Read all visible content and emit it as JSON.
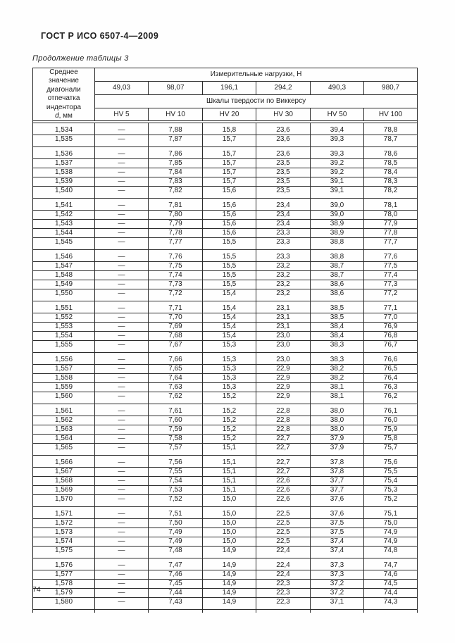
{
  "page": {
    "doc_title": "ГОСТ Р ИСО 6507-4—2009",
    "table_caption": "Продолжение таблицы 3",
    "page_number": "74"
  },
  "table": {
    "corner_text": "Среднее значение диагонали отпечатка индентора",
    "corner_symbol": "d",
    "corner_unit": ", мм",
    "loads_header": "Измерительные нагрузки, Н",
    "loads": [
      "49,03",
      "98,07",
      "196,1",
      "294,2",
      "490,3",
      "980,7"
    ],
    "scales_header": "Шкалы твердости по Виккерсу",
    "scales": [
      "HV 5",
      "HV 10",
      "HV 20",
      "HV 30",
      "HV 50",
      "HV 100"
    ],
    "groups": [
      {
        "rows": [
          [
            "1,534",
            "—",
            "7,88",
            "15,8",
            "23,6",
            "39,4",
            "78,8"
          ],
          [
            "1,535",
            "—",
            "7,87",
            "15,7",
            "23,6",
            "39,3",
            "78,7"
          ]
        ]
      },
      {
        "rows": [
          [
            "1,536",
            "—",
            "7,86",
            "15,7",
            "23,6",
            "39,3",
            "78,6"
          ],
          [
            "1,537",
            "—",
            "7,85",
            "15,7",
            "23,5",
            "39,2",
            "78,5"
          ],
          [
            "1,538",
            "—",
            "7,84",
            "15,7",
            "23,5",
            "39,2",
            "78,4"
          ],
          [
            "1,539",
            "—",
            "7,83",
            "15,7",
            "23,5",
            "39,1",
            "78,3"
          ],
          [
            "1,540",
            "—",
            "7,82",
            "15,6",
            "23,5",
            "39,1",
            "78,2"
          ]
        ]
      },
      {
        "rows": [
          [
            "1,541",
            "—",
            "7,81",
            "15,6",
            "23,4",
            "39,0",
            "78,1"
          ],
          [
            "1,542",
            "—",
            "7,80",
            "15,6",
            "23,4",
            "39,0",
            "78,0"
          ],
          [
            "1,543",
            "—",
            "7,79",
            "15,6",
            "23,4",
            "38,9",
            "77,9"
          ],
          [
            "1,544",
            "—",
            "7,78",
            "15,6",
            "23,3",
            "38,9",
            "77,8"
          ],
          [
            "1,545",
            "—",
            "7,77",
            "15,5",
            "23,3",
            "38,8",
            "77,7"
          ]
        ]
      },
      {
        "rows": [
          [
            "1,546",
            "—",
            "7,76",
            "15,5",
            "23,3",
            "38,8",
            "77,6"
          ],
          [
            "1,547",
            "—",
            "7,75",
            "15,5",
            "23,2",
            "38,7",
            "77,5"
          ],
          [
            "1,548",
            "—",
            "7,74",
            "15,5",
            "23,2",
            "38,7",
            "77,4"
          ],
          [
            "1,549",
            "—",
            "7,73",
            "15,5",
            "23,2",
            "38,6",
            "77,3"
          ],
          [
            "1,550",
            "—",
            "7,72",
            "15,4",
            "23,2",
            "38,6",
            "77,2"
          ]
        ]
      },
      {
        "rows": [
          [
            "1,551",
            "—",
            "7,71",
            "15,4",
            "23,1",
            "38,5",
            "77,1"
          ],
          [
            "1,552",
            "—",
            "7,70",
            "15,4",
            "23,1",
            "38,5",
            "77,0"
          ],
          [
            "1,553",
            "—",
            "7,69",
            "15,4",
            "23,1",
            "38,4",
            "76,9"
          ],
          [
            "1,554",
            "—",
            "7,68",
            "15,4",
            "23,0",
            "38,4",
            "76,8"
          ],
          [
            "1,555",
            "—",
            "7,67",
            "15,3",
            "23,0",
            "38,3",
            "76,7"
          ]
        ]
      },
      {
        "rows": [
          [
            "1,556",
            "—",
            "7,66",
            "15,3",
            "23,0",
            "38,3",
            "76,6"
          ],
          [
            "1,557",
            "—",
            "7,65",
            "15,3",
            "22,9",
            "38,2",
            "76,5"
          ],
          [
            "1,558",
            "—",
            "7,64",
            "15,3",
            "22,9",
            "38,2",
            "76,4"
          ],
          [
            "1,559",
            "—",
            "7,63",
            "15,3",
            "22,9",
            "38,1",
            "76,3"
          ],
          [
            "1,560",
            "—",
            "7,62",
            "15,2",
            "22,9",
            "38,1",
            "76,2"
          ]
        ]
      },
      {
        "rows": [
          [
            "1,561",
            "—",
            "7,61",
            "15,2",
            "22,8",
            "38,0",
            "76,1"
          ],
          [
            "1,562",
            "—",
            "7,60",
            "15,2",
            "22,8",
            "38,0",
            "76,0"
          ],
          [
            "1,563",
            "—",
            "7,59",
            "15,2",
            "22,8",
            "38,0",
            "75,9"
          ],
          [
            "1,564",
            "—",
            "7,58",
            "15,2",
            "22,7",
            "37,9",
            "75,8"
          ],
          [
            "1,565",
            "—",
            "7,57",
            "15,1",
            "22,7",
            "37,9",
            "75,7"
          ]
        ]
      },
      {
        "rows": [
          [
            "1,566",
            "—",
            "7,56",
            "15,1",
            "22,7",
            "37,8",
            "75,6"
          ],
          [
            "1,567",
            "—",
            "7,55",
            "15,1",
            "22,7",
            "37,8",
            "75,5"
          ],
          [
            "1,568",
            "—",
            "7,54",
            "15,1",
            "22,6",
            "37,7",
            "75,4"
          ],
          [
            "1,569",
            "—",
            "7,53",
            "15,1",
            "22,6",
            "37,7",
            "75,3"
          ],
          [
            "1,570",
            "—",
            "7,52",
            "15,0",
            "22,6",
            "37,6",
            "75,2"
          ]
        ]
      },
      {
        "rows": [
          [
            "1,571",
            "—",
            "7,51",
            "15,0",
            "22,5",
            "37,6",
            "75,1"
          ],
          [
            "1,572",
            "—",
            "7,50",
            "15,0",
            "22,5",
            "37,5",
            "75,0"
          ],
          [
            "1,573",
            "—",
            "7,49",
            "15,0",
            "22,5",
            "37,5",
            "74,9"
          ],
          [
            "1,574",
            "—",
            "7,49",
            "15,0",
            "22,5",
            "37,4",
            "74,9"
          ],
          [
            "1,575",
            "—",
            "7,48",
            "14,9",
            "22,4",
            "37,4",
            "74,8"
          ]
        ]
      },
      {
        "rows": [
          [
            "1,576",
            "—",
            "7,47",
            "14,9",
            "22,4",
            "37,3",
            "74,7"
          ],
          [
            "1,577",
            "—",
            "7,46",
            "14,9",
            "22,4",
            "37,3",
            "74,6"
          ],
          [
            "1,578",
            "—",
            "7,45",
            "14,9",
            "22,3",
            "37,2",
            "74,5"
          ],
          [
            "1,579",
            "—",
            "7,44",
            "14,9",
            "22,3",
            "37,2",
            "74,4"
          ],
          [
            "1,580",
            "—",
            "7,43",
            "14,9",
            "22,3",
            "37,1",
            "74,3"
          ]
        ]
      }
    ]
  }
}
